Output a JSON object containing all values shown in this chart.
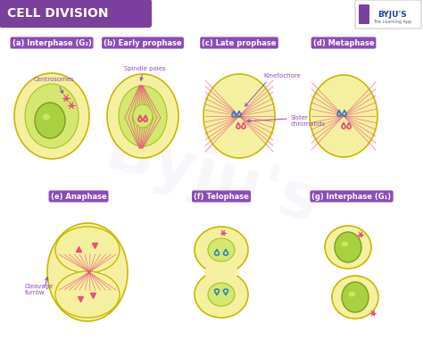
{
  "title": "CELL DIVISION",
  "title_bg": "#7B3F9E",
  "title_color": "#FFFFFF",
  "bg_color": "#FFFFFF",
  "label_bg": "#8B4BB8",
  "label_color": "#FFFFFF",
  "cell_outer_color": "#F5F0A0",
  "cell_outer_edge": "#C8B800",
  "cell_inner_color": "#D4E870",
  "cell_inner_edge": "#A8C020",
  "nucleus_color": "#A8D040",
  "nucleus_edge": "#78A020",
  "nucleus_shine": "#C8E860",
  "spindle_color": "#E8507A",
  "chromatid_pink": "#E8507A",
  "chromatid_blue": "#3A7FBF",
  "annotation_color": "#8B4BB8",
  "arrow_color": "#555555",
  "labels": [
    "(a) Interphase (G₂)",
    "(b) Early prophase",
    "(c) Late prophase",
    "(d) Metaphase",
    "(e) Anaphase",
    "(f) Telophase",
    "(g) Interphase (G₁)"
  ],
  "ann_centrosomes": "Centrosomes",
  "ann_spindle_poles": "Spindle poles",
  "ann_kinetochore": "Kinetochore",
  "ann_sister": "Sister\nchromatids",
  "ann_cleavage": "Cleavage\nfurrow",
  "logo_text": "BYJU'S",
  "logo_sub": "The Learning App",
  "watermark": "Byju's"
}
